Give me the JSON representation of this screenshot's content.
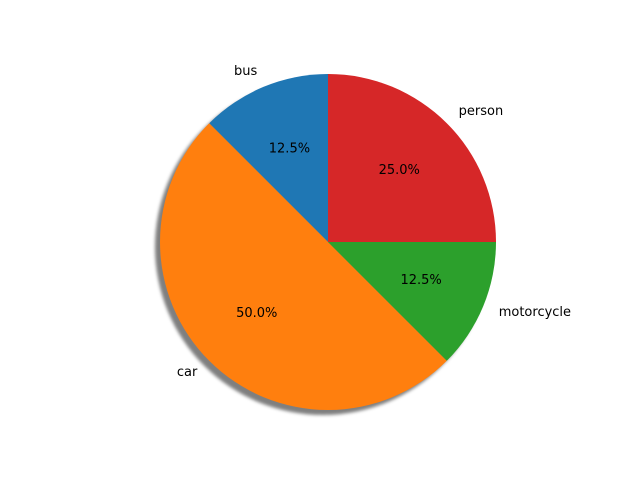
{
  "chart_data": {
    "type": "pie",
    "title": "",
    "start_angle_deg": 90,
    "direction": "counterclockwise",
    "shadow": true,
    "slices": [
      {
        "label": "bus",
        "value": 12.5,
        "pct_label": "12.5%",
        "color": "#1f77b4"
      },
      {
        "label": "car",
        "value": 50.0,
        "pct_label": "50.0%",
        "color": "#ff7f0e"
      },
      {
        "label": "motorcycle",
        "value": 12.5,
        "pct_label": "12.5%",
        "color": "#2ca02c"
      },
      {
        "label": "person",
        "value": 25.0,
        "pct_label": "25.0%",
        "color": "#d62728"
      }
    ]
  }
}
